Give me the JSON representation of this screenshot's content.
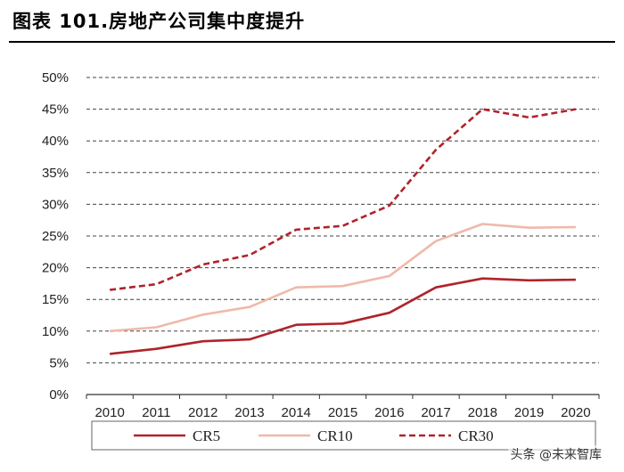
{
  "header": {
    "title": "图表 101.房地产公司集中度提升"
  },
  "watermark": {
    "text": "头条 @未来智库"
  },
  "colors": {
    "cr5": "#b0232a",
    "cr10": "#efb9a9",
    "cr30": "#b0232a",
    "grid": "#444444"
  },
  "chart_data": {
    "type": "line",
    "title": "",
    "xlabel": "",
    "ylabel": "",
    "ylim": [
      0,
      50
    ],
    "y_ticks": [
      "0%",
      "5%",
      "10%",
      "15%",
      "20%",
      "25%",
      "30%",
      "35%",
      "40%",
      "45%",
      "50%"
    ],
    "grid": "horizontal-dashed",
    "legend_position": "bottom",
    "x": [
      "2010",
      "2011",
      "2012",
      "2013",
      "2014",
      "2015",
      "2016",
      "2017",
      "2018",
      "2019",
      "2020"
    ],
    "series": [
      {
        "name": "CR5",
        "style": "solid",
        "values": [
          6.4,
          7.2,
          8.4,
          8.7,
          11.0,
          11.2,
          12.9,
          16.9,
          18.3,
          18.0,
          18.1
        ]
      },
      {
        "name": "CR10",
        "style": "solid-light",
        "values": [
          10.0,
          10.6,
          12.6,
          13.8,
          16.9,
          17.1,
          18.7,
          24.2,
          26.9,
          26.3,
          26.4
        ]
      },
      {
        "name": "CR30",
        "style": "dashed",
        "values": [
          16.5,
          17.4,
          20.5,
          22.0,
          26.0,
          26.6,
          29.8,
          38.6,
          45.0,
          43.7,
          45.0
        ]
      }
    ]
  }
}
